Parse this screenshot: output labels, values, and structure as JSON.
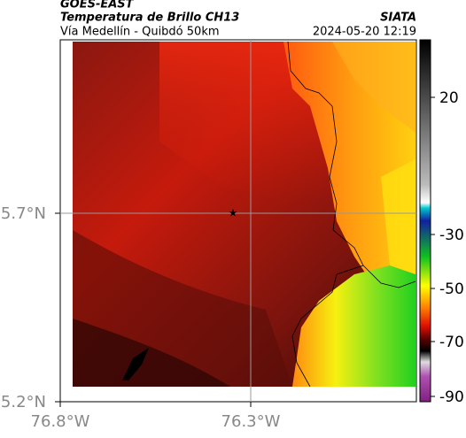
{
  "header": {
    "source": "GOES-EAST",
    "product": "Temperatura de Brillo CH13",
    "org": "SIATA",
    "route": "Vía Medellín - Quibdó 50km",
    "datetime": "2024-05-20 12:19"
  },
  "axes": {
    "lat_labels": [
      "5.7°N",
      "5.2°N"
    ],
    "lon_labels": [
      "76.8°W",
      "76.3°W"
    ]
  },
  "colorbar": {
    "ticks": [
      20,
      -30,
      -50,
      -70,
      -90
    ]
  }
}
